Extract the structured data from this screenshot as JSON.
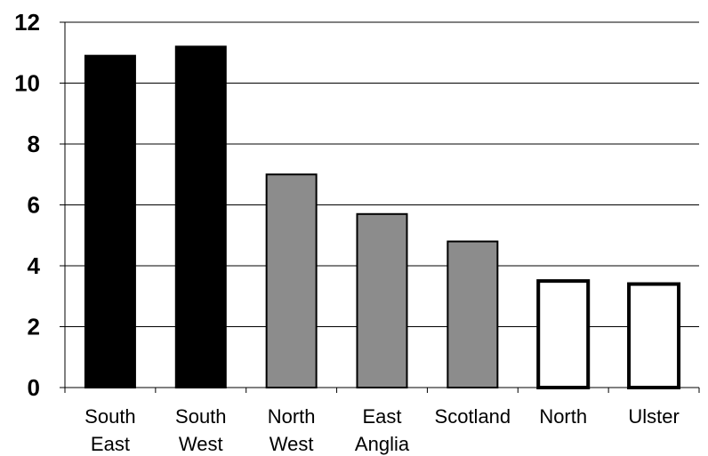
{
  "chart_data": {
    "type": "bar",
    "categories": [
      [
        "South",
        "East"
      ],
      [
        "South",
        "West"
      ],
      [
        "North",
        "West"
      ],
      [
        "East",
        "Anglia"
      ],
      [
        "Scotland"
      ],
      [
        "North"
      ],
      [
        "Ulster"
      ]
    ],
    "values": [
      10.9,
      11.2,
      7.0,
      5.7,
      4.8,
      3.5,
      3.4
    ],
    "bar_styles": [
      "black",
      "black",
      "gray",
      "gray",
      "gray",
      "white",
      "white"
    ],
    "colors": {
      "black": "#000000",
      "gray": "#8c8c8c",
      "white": "#ffffff",
      "gridline": "#000000"
    },
    "y_ticks": [
      "0",
      "2",
      "4",
      "6",
      "8",
      "10",
      "12"
    ],
    "ylim": [
      0,
      12
    ],
    "grid": true,
    "title": "",
    "xlabel": "",
    "ylabel": ""
  }
}
